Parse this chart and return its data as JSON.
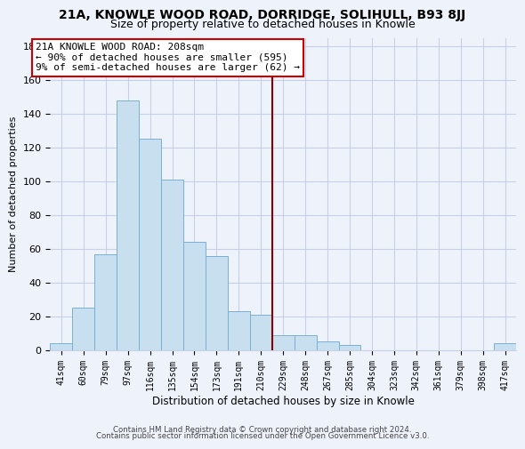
{
  "title": "21A, KNOWLE WOOD ROAD, DORRIDGE, SOLIHULL, B93 8JJ",
  "subtitle": "Size of property relative to detached houses in Knowle",
  "xlabel": "Distribution of detached houses by size in Knowle",
  "ylabel": "Number of detached properties",
  "bar_labels": [
    "41sqm",
    "60sqm",
    "79sqm",
    "97sqm",
    "116sqm",
    "135sqm",
    "154sqm",
    "173sqm",
    "191sqm",
    "210sqm",
    "229sqm",
    "248sqm",
    "267sqm",
    "285sqm",
    "304sqm",
    "323sqm",
    "342sqm",
    "361sqm",
    "379sqm",
    "398sqm",
    "417sqm"
  ],
  "bar_values": [
    4,
    25,
    57,
    148,
    125,
    101,
    64,
    56,
    23,
    21,
    9,
    9,
    5,
    3,
    0,
    0,
    0,
    0,
    0,
    0,
    4
  ],
  "bar_color": "#c8dff0",
  "bar_edge_color": "#7aafd4",
  "vline_x": 9.5,
  "vline_color": "#8b0000",
  "annotation_title": "21A KNOWLE WOOD ROAD: 208sqm",
  "annotation_line1": "← 90% of detached houses are smaller (595)",
  "annotation_line2": "9% of semi-detached houses are larger (62) →",
  "annotation_box_color": "white",
  "annotation_box_edge": "#cc0000",
  "ylim": [
    0,
    185
  ],
  "yticks": [
    0,
    20,
    40,
    60,
    80,
    100,
    120,
    140,
    160,
    180
  ],
  "footer1": "Contains HM Land Registry data © Crown copyright and database right 2024.",
  "footer2": "Contains public sector information licensed under the Open Government Licence v3.0.",
  "bg_color": "#eef2fb",
  "grid_color": "#c8d0e8",
  "title_fontsize": 10,
  "subtitle_fontsize": 9
}
